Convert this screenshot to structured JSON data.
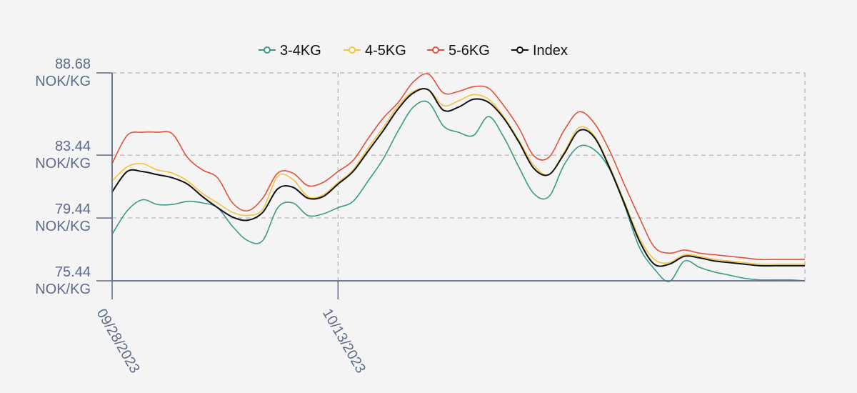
{
  "colors": {
    "background": "#f4f4f4",
    "axis": "#5b6b8c",
    "grid": "#b0b0b0"
  },
  "chart_data": {
    "type": "line",
    "x_dates": [
      "09/28/2023",
      "09/29/2023",
      "09/30/2023",
      "10/01/2023",
      "10/02/2023",
      "10/03/2023",
      "10/04/2023",
      "10/05/2023",
      "10/06/2023",
      "10/07/2023",
      "10/08/2023",
      "10/09/2023",
      "10/10/2023",
      "10/11/2023",
      "10/12/2023",
      "10/13/2023",
      "10/14/2023",
      "10/15/2023",
      "10/16/2023",
      "10/17/2023",
      "10/18/2023",
      "10/19/2023",
      "10/20/2023",
      "10/21/2023",
      "10/22/2023",
      "10/23/2023",
      "10/24/2023",
      "10/25/2023",
      "10/26/2023",
      "10/27/2023",
      "10/28/2023",
      "10/29/2023",
      "10/30/2023",
      "10/31/2023",
      "11/01/2023",
      "11/02/2023",
      "11/03/2023",
      "11/04/2023",
      "11/05/2023",
      "11/06/2023",
      "11/07/2023",
      "11/08/2023",
      "11/09/2023",
      "11/10/2023",
      "11/11/2023",
      "11/12/2023",
      "11/13/2023"
    ],
    "series": [
      {
        "name": "3-4KG",
        "color": "#3a9a87",
        "values": [
          78.4,
          79.9,
          80.6,
          80.3,
          80.3,
          80.5,
          80.4,
          80.1,
          78.9,
          78.0,
          78.0,
          80.1,
          80.4,
          79.6,
          79.7,
          80.1,
          80.5,
          81.8,
          83.2,
          85.0,
          86.5,
          86.8,
          85.3,
          84.9,
          84.7,
          85.9,
          84.6,
          82.7,
          81.0,
          80.8,
          82.8,
          84.0,
          83.8,
          82.6,
          80.3,
          77.6,
          76.2,
          75.4,
          76.7,
          76.3,
          76.0,
          75.8,
          75.6,
          75.5,
          75.5,
          75.5,
          75.44
        ]
      },
      {
        "name": "4-5KG",
        "color": "#f2c43d",
        "values": [
          81.8,
          82.7,
          82.9,
          82.5,
          82.3,
          81.8,
          81.0,
          80.4,
          79.8,
          79.6,
          80.0,
          82.1,
          81.9,
          80.8,
          80.9,
          81.7,
          82.5,
          83.9,
          85.2,
          86.6,
          87.5,
          87.6,
          86.6,
          86.9,
          87.3,
          87.0,
          85.9,
          84.4,
          82.8,
          82.2,
          83.6,
          85.2,
          84.7,
          82.8,
          80.5,
          78.2,
          76.8,
          76.6,
          77.1,
          77.0,
          76.8,
          76.7,
          76.6,
          76.5,
          76.5,
          76.5,
          76.5
        ]
      },
      {
        "name": "5-6KG",
        "color": "#e0513c",
        "values": [
          82.9,
          84.7,
          84.9,
          84.9,
          84.8,
          83.3,
          82.5,
          82.0,
          80.4,
          79.9,
          80.7,
          82.3,
          82.3,
          81.5,
          81.7,
          82.4,
          83.1,
          84.5,
          85.8,
          86.8,
          88.1,
          88.6,
          87.4,
          87.5,
          87.8,
          87.7,
          86.6,
          85.2,
          83.4,
          83.3,
          85.0,
          86.2,
          85.5,
          83.8,
          81.6,
          79.5,
          77.6,
          77.2,
          77.4,
          77.2,
          77.1,
          77.0,
          76.9,
          76.8,
          76.8,
          76.8,
          76.8
        ]
      },
      {
        "name": "Index",
        "color": "#111111",
        "values": [
          81.1,
          82.4,
          82.4,
          82.2,
          82.0,
          81.6,
          80.8,
          80.1,
          79.5,
          79.3,
          79.8,
          81.3,
          81.4,
          80.7,
          80.8,
          81.6,
          82.4,
          83.7,
          85.0,
          86.4,
          87.4,
          87.6,
          86.3,
          86.5,
          87.0,
          86.8,
          85.8,
          84.3,
          82.6,
          82.2,
          83.5,
          85.0,
          84.6,
          82.7,
          80.4,
          78.0,
          76.5,
          76.5,
          77.0,
          76.9,
          76.7,
          76.6,
          76.5,
          76.4,
          76.4,
          76.4,
          76.4
        ]
      }
    ],
    "legend": [
      "3-4KG",
      "4-5KG",
      "5-6KG",
      "Index"
    ],
    "y_ticks": [
      {
        "value": 88.68,
        "line1": "88.68",
        "line2": "NOK/KG"
      },
      {
        "value": 83.44,
        "line1": "83.44",
        "line2": "NOK/KG"
      },
      {
        "value": 79.44,
        "line1": "79.44",
        "line2": "NOK/KG"
      },
      {
        "value": 75.44,
        "line1": "75.44",
        "line2": "NOK/KG"
      }
    ],
    "x_ticks": [
      "09/28/2023",
      "10/13/2023"
    ],
    "ylim": [
      75.44,
      88.68
    ],
    "grid": true,
    "legend_position": "top-center"
  }
}
